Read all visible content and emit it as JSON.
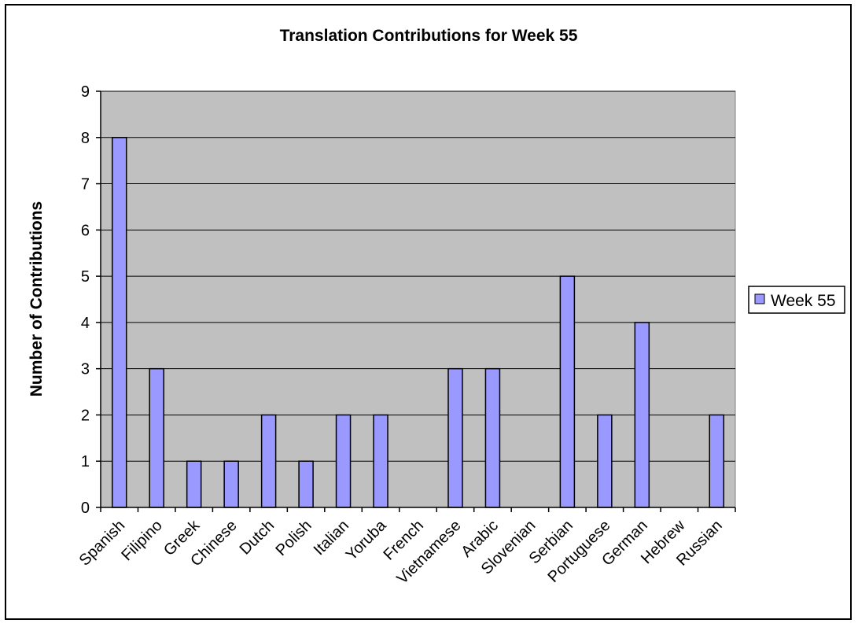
{
  "chart_data": {
    "type": "bar",
    "title": "Translation Contributions for Week 55",
    "xlabel": "",
    "ylabel": "Number of Contributions",
    "categories": [
      "Spanish",
      "Filipino",
      "Greek",
      "Chinese",
      "Dutch",
      "Polish",
      "Italian",
      "Yoruba",
      "French",
      "Vietnamese",
      "Arabic",
      "Slovenian",
      "Serbian",
      "Portuguese",
      "German",
      "Hebrew",
      "Russian"
    ],
    "series": [
      {
        "name": "Week 55",
        "values": [
          8,
          3,
          1,
          1,
          2,
          1,
          2,
          2,
          0,
          3,
          3,
          0,
          5,
          2,
          4,
          0,
          2
        ],
        "color": "#9999ff"
      }
    ],
    "ylim": [
      0,
      9
    ],
    "yticks": [
      "0",
      "1",
      "2",
      "3",
      "4",
      "5",
      "6",
      "7",
      "8",
      "9"
    ],
    "grid": true,
    "legend_position": "right",
    "plot_background": "#c0c0c0"
  }
}
